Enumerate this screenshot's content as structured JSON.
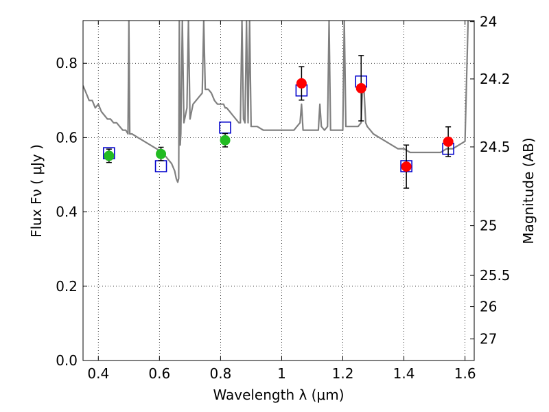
{
  "chart_data": {
    "type": "scatter",
    "xlabel": "Wavelength  λ (μm)",
    "ylabel": "Flux  Fν  ( μJy )",
    "y2label": "Magnitude (AB)",
    "xlim": [
      0.35,
      1.63
    ],
    "ylim": [
      0.0,
      0.915
    ],
    "grid": true,
    "x_ticks": [
      0.4,
      0.6,
      0.8,
      1.0,
      1.2,
      1.4,
      1.6
    ],
    "x_tick_labels": [
      "0.4",
      "0.6",
      "0.8",
      "1",
      "1.2",
      "1.4",
      "1.6"
    ],
    "y_ticks": [
      0.0,
      0.2,
      0.4,
      0.6,
      0.8
    ],
    "y_tick_labels": [
      "0.0",
      "0.2",
      "0.4",
      "0.6",
      "0.8"
    ],
    "y2_ticks": [
      {
        "label": "24",
        "flux": 0.912
      },
      {
        "label": "24.2",
        "flux": 0.758
      },
      {
        "label": "24.5",
        "flux": 0.575
      },
      {
        "label": "25",
        "flux": 0.363
      },
      {
        "label": "25.5",
        "flux": 0.229
      },
      {
        "label": "26",
        "flux": 0.145
      },
      {
        "label": "27",
        "flux": 0.058
      }
    ],
    "colors": {
      "spectrum": "#808080",
      "model_box": "#0000cc",
      "optical": "#22bb22",
      "nir": "#ff0000",
      "errorbar": "#000000"
    },
    "series": [
      {
        "marker": "line",
        "color": "#808080",
        "x": [
          0.35,
          0.36,
          0.37,
          0.38,
          0.39,
          0.4,
          0.41,
          0.42,
          0.43,
          0.44,
          0.45,
          0.46,
          0.47,
          0.48,
          0.49,
          0.497,
          0.5,
          0.503,
          0.51,
          0.53,
          0.55,
          0.57,
          0.59,
          0.61,
          0.62,
          0.63,
          0.64,
          0.65,
          0.655,
          0.66,
          0.663,
          0.665,
          0.668,
          0.67,
          0.675,
          0.68,
          0.685,
          0.69,
          0.695,
          0.7,
          0.705,
          0.71,
          0.72,
          0.73,
          0.74,
          0.745,
          0.75,
          0.76,
          0.77,
          0.78,
          0.79,
          0.8,
          0.81,
          0.815,
          0.82,
          0.83,
          0.84,
          0.85,
          0.86,
          0.865,
          0.87,
          0.875,
          0.88,
          0.885,
          0.89,
          0.895,
          0.9,
          0.91,
          0.92,
          0.94,
          0.96,
          0.98,
          1.0,
          1.02,
          1.04,
          1.05,
          1.06,
          1.065,
          1.07,
          1.08,
          1.1,
          1.12,
          1.125,
          1.13,
          1.14,
          1.15,
          1.155,
          1.16,
          1.17,
          1.18,
          1.19,
          1.2,
          1.205,
          1.21,
          1.22,
          1.23,
          1.24,
          1.25,
          1.26,
          1.265,
          1.27,
          1.275,
          1.28,
          1.29,
          1.3,
          1.32,
          1.34,
          1.36,
          1.38,
          1.4,
          1.42,
          1.44,
          1.46,
          1.48,
          1.5,
          1.52,
          1.54,
          1.56,
          1.58,
          1.6,
          1.61,
          1.62,
          1.63
        ],
        "y": [
          0.74,
          0.72,
          0.7,
          0.7,
          0.68,
          0.69,
          0.67,
          0.66,
          0.65,
          0.65,
          0.64,
          0.64,
          0.63,
          0.62,
          0.62,
          0.61,
          0.915,
          0.61,
          0.61,
          0.6,
          0.59,
          0.58,
          0.57,
          0.56,
          0.55,
          0.54,
          0.53,
          0.51,
          0.49,
          0.48,
          0.49,
          0.915,
          0.58,
          0.61,
          0.915,
          0.64,
          0.66,
          0.68,
          0.915,
          0.65,
          0.67,
          0.69,
          0.7,
          0.71,
          0.72,
          0.915,
          0.73,
          0.73,
          0.72,
          0.7,
          0.69,
          0.69,
          0.69,
          0.68,
          0.68,
          0.67,
          0.66,
          0.65,
          0.64,
          0.64,
          0.915,
          0.65,
          0.64,
          0.915,
          0.64,
          0.915,
          0.63,
          0.63,
          0.63,
          0.62,
          0.62,
          0.62,
          0.62,
          0.62,
          0.62,
          0.63,
          0.64,
          0.69,
          0.62,
          0.62,
          0.62,
          0.62,
          0.69,
          0.63,
          0.62,
          0.63,
          0.915,
          0.62,
          0.62,
          0.62,
          0.62,
          0.62,
          0.915,
          0.63,
          0.63,
          0.63,
          0.63,
          0.63,
          0.64,
          0.74,
          0.72,
          0.64,
          0.63,
          0.62,
          0.61,
          0.6,
          0.59,
          0.58,
          0.57,
          0.57,
          0.56,
          0.56,
          0.56,
          0.56,
          0.56,
          0.56,
          0.57,
          0.57,
          0.58,
          0.59,
          0.915,
          0.915,
          0.915
        ]
      },
      {
        "marker": "open-square",
        "color": "#0000cc",
        "x": [
          0.435,
          0.605,
          0.815,
          1.065,
          1.26,
          1.408,
          1.545
        ],
        "y": [
          0.558,
          0.523,
          0.627,
          0.727,
          0.751,
          0.523,
          0.57
        ]
      },
      {
        "marker": "filled-circle",
        "color": "#22bb22",
        "x": [
          0.435,
          0.605,
          0.815
        ],
        "y": [
          0.551,
          0.556,
          0.593
        ],
        "yerr": [
          0.018,
          0.018,
          0.018
        ]
      },
      {
        "marker": "filled-circle",
        "color": "#ff0000",
        "x": [
          1.065,
          1.26,
          1.408,
          1.545
        ],
        "y": [
          0.746,
          0.733,
          0.522,
          0.589
        ],
        "yerr": [
          0.045,
          0.088,
          0.058,
          0.04
        ]
      }
    ]
  }
}
